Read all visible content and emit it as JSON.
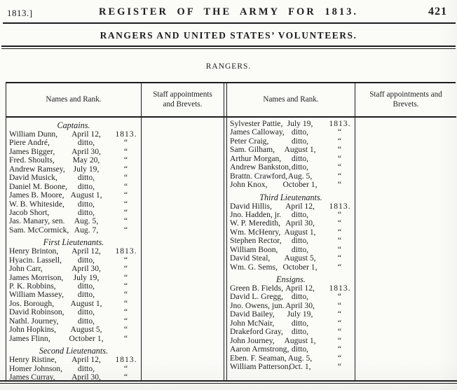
{
  "colors": {
    "ink": "#1d1d1d",
    "paper": "#fbfbf8"
  },
  "masthead": {
    "edition": "1813.]",
    "title": "REGISTER OF THE ARMY FOR 1813.",
    "page_number": "421"
  },
  "subtitle": "RANGERS AND UNITED STATES’ VOLUNTEERS.",
  "section_title": "RANGERS.",
  "table": {
    "col_headers": [
      "Names and Rank.",
      "Staff appointments and Brevets.",
      "Names and Rank.",
      "Staff appointments and Brevets."
    ],
    "left_column_sections": [
      {
        "heading": "Captains.",
        "rows": [
          [
            "William Dunn,",
            "April 12,",
            "1813."
          ],
          [
            "Piere André,",
            "ditto,",
            "“"
          ],
          [
            "James Bigger,",
            "April 30,",
            "“"
          ],
          [
            "Fred. Shoults,",
            "May 20,",
            "“"
          ],
          [
            "Andrew Ramsey,",
            "July 19,",
            "“"
          ],
          [
            "David Musick,",
            "ditto,",
            "“"
          ],
          [
            "Daniel M. Boone,",
            "ditto,",
            "“"
          ],
          [
            "James B. Moore,",
            "August 1,",
            "“"
          ],
          [
            "W. B. Whiteside,",
            "ditto,",
            "“"
          ],
          [
            "Jacob Short,",
            "ditto,",
            "“"
          ],
          [
            "Jas. Manary, sen.",
            "Aug. 5,",
            "“"
          ],
          [
            "Sam. McCormick,",
            "Aug. 7,",
            "“"
          ]
        ]
      },
      {
        "heading": "First Lieutenants.",
        "rows": [
          [
            "Henry Brinton,",
            "April 12,",
            "1813."
          ],
          [
            "Hyacin. Lassell,",
            "ditto,",
            "“"
          ],
          [
            "John Carr,",
            "April 30,",
            "“"
          ],
          [
            "James Morrison,",
            "July 19,",
            "“"
          ],
          [
            "P. K. Robbins,",
            "ditto,",
            "“"
          ],
          [
            "William Massey,",
            "ditto,",
            "“"
          ],
          [
            "Jos. Borough,",
            "August 1,",
            "“"
          ],
          [
            "David Robinson,",
            "ditto,",
            "“"
          ],
          [
            "Nathl. Journey,",
            "ditto,",
            "“"
          ],
          [
            "John Hopkins,",
            "August 5,",
            "“"
          ],
          [
            "James Flinn,",
            "October 1,",
            "“"
          ]
        ]
      },
      {
        "heading": "Second Lieutenants.",
        "rows": [
          [
            "Henry Ristine,",
            "April 12,",
            "1813."
          ],
          [
            "Homer Johnson,",
            "ditto,",
            "“"
          ],
          [
            "James Curray,",
            "April 30,",
            "“"
          ]
        ]
      }
    ],
    "right_column_sections": [
      {
        "heading": "",
        "rows": [
          [
            "Sylvester Pattie,",
            "July 19,",
            "1813."
          ],
          [
            "James Calloway,",
            "ditto,",
            "“"
          ],
          [
            "Peter Craig,",
            "ditto,",
            "“"
          ],
          [
            "Sam. Gilham,",
            "August 1,",
            "“"
          ],
          [
            "Arthur Morgan,",
            "ditto,",
            "“"
          ],
          [
            "Andrew Bankston,",
            "ditto,",
            "“"
          ],
          [
            "Brattn. Crawford,",
            "Aug. 5,",
            "“"
          ],
          [
            "John Knox,",
            "October 1,",
            "“"
          ]
        ]
      },
      {
        "heading": "Third Lieutenants.",
        "rows": [
          [
            "David Hillis,",
            "April 12,",
            "1813."
          ],
          [
            "Jno. Hadden, jr.",
            "ditto,",
            "“"
          ],
          [
            "W. P. Meredith,",
            "April 30,",
            "“"
          ],
          [
            "Wm. McHenry,",
            "August 1,",
            "“"
          ],
          [
            "Stephen Rector,",
            "ditto,",
            "“"
          ],
          [
            "William Boon,",
            "ditto,",
            "“"
          ],
          [
            "David Steal,",
            "August 5,",
            "“"
          ],
          [
            "Wm. G. Sems,",
            "October 1,",
            "“"
          ]
        ]
      },
      {
        "heading": "Ensigns.",
        "rows": [
          [
            "Green B. Fields,",
            "April 12,",
            "1813."
          ],
          [
            "David L. Gregg,",
            "ditto,",
            "“"
          ],
          [
            "Jno. Owens, jun.",
            "April 30,",
            "“"
          ],
          [
            "David Bailey,",
            "July 19,",
            "“"
          ],
          [
            "John McNair,",
            "ditto,",
            "“"
          ],
          [
            "Drakeford Gray,",
            "ditto,",
            "“"
          ],
          [
            "John Journey,",
            "August 1,",
            "“"
          ],
          [
            "Aaron Armstrong,",
            "ditto,",
            "“"
          ],
          [
            "Eben. F. Seaman,",
            "Aug. 5,",
            "“"
          ],
          [
            "William Patterson,",
            "Oct. 1,",
            "“"
          ]
        ]
      }
    ]
  }
}
